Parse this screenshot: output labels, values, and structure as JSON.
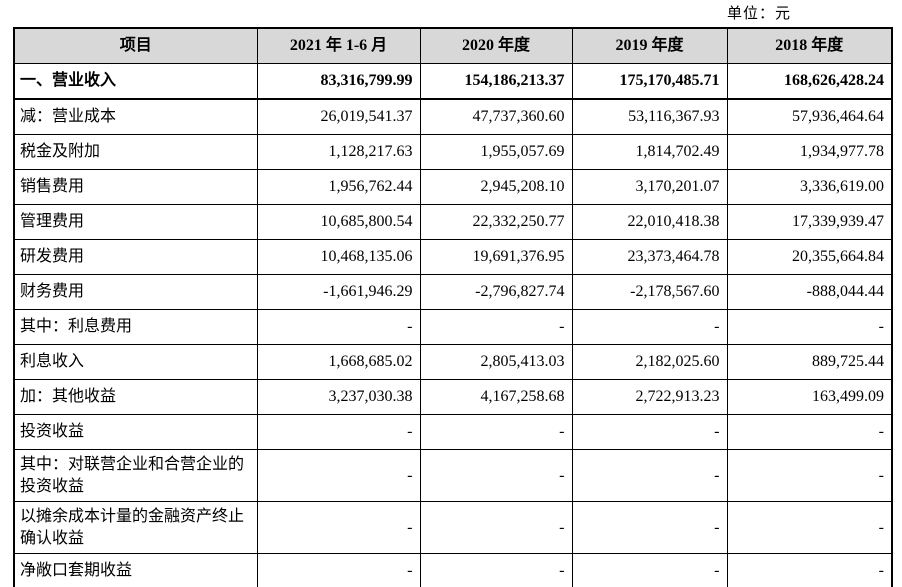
{
  "unit_label": "单位：元",
  "table": {
    "headers": [
      "项目",
      "2021 年 1-6 月",
      "2020 年度",
      "2019 年度",
      "2018 年度"
    ],
    "rows": [
      {
        "label": "一、营业收入",
        "values": [
          "83,316,799.99",
          "154,186,213.37",
          "175,170,485.71",
          "168,626,428.24"
        ],
        "bold": true,
        "tall": false
      },
      {
        "label": "减：营业成本",
        "values": [
          "26,019,541.37",
          "47,737,360.60",
          "53,116,367.93",
          "57,936,464.64"
        ],
        "bold": false,
        "tall": false
      },
      {
        "label": "税金及附加",
        "values": [
          "1,128,217.63",
          "1,955,057.69",
          "1,814,702.49",
          "1,934,977.78"
        ],
        "bold": false,
        "tall": false
      },
      {
        "label": "销售费用",
        "values": [
          "1,956,762.44",
          "2,945,208.10",
          "3,170,201.07",
          "3,336,619.00"
        ],
        "bold": false,
        "tall": false
      },
      {
        "label": "管理费用",
        "values": [
          "10,685,800.54",
          "22,332,250.77",
          "22,010,418.38",
          "17,339,939.47"
        ],
        "bold": false,
        "tall": false
      },
      {
        "label": "研发费用",
        "values": [
          "10,468,135.06",
          "19,691,376.95",
          "23,373,464.78",
          "20,355,664.84"
        ],
        "bold": false,
        "tall": false
      },
      {
        "label": "财务费用",
        "values": [
          "-1,661,946.29",
          "-2,796,827.74",
          "-2,178,567.60",
          "-888,044.44"
        ],
        "bold": false,
        "tall": false
      },
      {
        "label": "其中：利息费用",
        "values": [
          "-",
          "-",
          "-",
          "-"
        ],
        "bold": false,
        "tall": false
      },
      {
        "label": "利息收入",
        "values": [
          "1,668,685.02",
          "2,805,413.03",
          "2,182,025.60",
          "889,725.44"
        ],
        "bold": false,
        "tall": false
      },
      {
        "label": "加：其他收益",
        "values": [
          "3,237,030.38",
          "4,167,258.68",
          "2,722,913.23",
          "163,499.09"
        ],
        "bold": false,
        "tall": false
      },
      {
        "label": "投资收益",
        "values": [
          "-",
          "-",
          "-",
          "-"
        ],
        "bold": false,
        "tall": false
      },
      {
        "label": "其中：对联营企业和合营企业的投资收益",
        "values": [
          "-",
          "-",
          "-",
          "-"
        ],
        "bold": false,
        "tall": true
      },
      {
        "label": "以摊余成本计量的金融资产终止确认收益",
        "values": [
          "-",
          "-",
          "-",
          "-"
        ],
        "bold": false,
        "tall": true
      },
      {
        "label": "净敞口套期收益",
        "values": [
          "-",
          "-",
          "-",
          "-"
        ],
        "bold": false,
        "tall": false
      }
    ]
  }
}
